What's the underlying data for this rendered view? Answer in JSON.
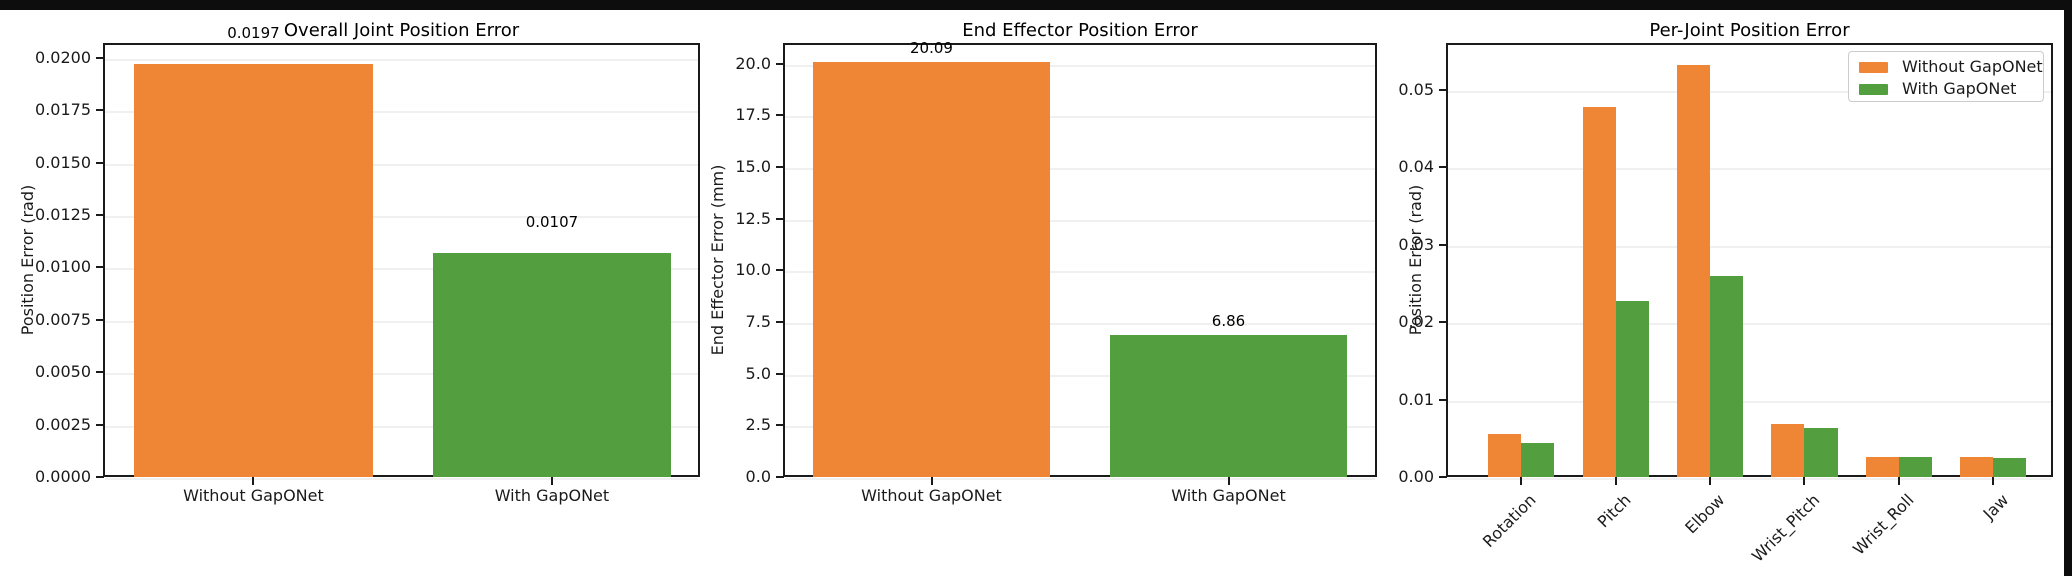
{
  "figure": {
    "background_color": "#ffffff",
    "frame_color": "#0d0d0d"
  },
  "colors": {
    "without_gaponet": "#ef8636",
    "with_gaponet": "#539e3e",
    "spine": "#1a1a1a"
  },
  "chart_data": [
    {
      "type": "bar",
      "title": "Overall Joint Position Error",
      "ylabel": "Position Error (rad)",
      "categories": [
        "Without GapONet",
        "With GapONet"
      ],
      "values": [
        0.0197,
        0.0107
      ],
      "bar_labels": [
        "0.0197",
        "0.0107"
      ],
      "bar_colors": [
        "#ef8636",
        "#539e3e"
      ],
      "ytick_labels": [
        "0.0000",
        "0.0025",
        "0.0050",
        "0.0075",
        "0.0100",
        "0.0125",
        "0.0150",
        "0.0175",
        "0.0200"
      ],
      "ytick_values": [
        0.0,
        0.0025,
        0.005,
        0.0075,
        0.01,
        0.0125,
        0.015,
        0.0175,
        0.02
      ],
      "ylim": [
        0,
        0.0207
      ],
      "grid": true,
      "legend": null
    },
    {
      "type": "bar",
      "title": "End Effector Position Error",
      "ylabel": "End Effector Error (mm)",
      "categories": [
        "Without GapONet",
        "With GapONet"
      ],
      "values": [
        20.09,
        6.86
      ],
      "bar_labels": [
        "20.09",
        "6.86"
      ],
      "bar_colors": [
        "#ef8636",
        "#539e3e"
      ],
      "ytick_labels": [
        "0.0",
        "2.5",
        "5.0",
        "7.5",
        "10.0",
        "12.5",
        "15.0",
        "17.5",
        "20.0"
      ],
      "ytick_values": [
        0,
        2.5,
        5,
        7.5,
        10,
        12.5,
        15,
        17.5,
        20
      ],
      "ylim": [
        0,
        21.0
      ],
      "grid": true,
      "legend": null
    },
    {
      "type": "grouped_bar",
      "title": "Per-Joint Position Error",
      "ylabel": "Position Error (rad)",
      "categories": [
        "Rotation",
        "Pitch",
        "Elbow",
        "Wrist_Pitch",
        "Wrist_Roll",
        "Jaw"
      ],
      "series": [
        {
          "name": "Without GapONet",
          "color": "#ef8636",
          "values": [
            0.0055,
            0.0477,
            0.0531,
            0.0068,
            0.0026,
            0.0026
          ]
        },
        {
          "name": "With GapONet",
          "color": "#539e3e",
          "values": [
            0.0044,
            0.0227,
            0.026,
            0.0063,
            0.0026,
            0.0025
          ]
        }
      ],
      "ytick_labels": [
        "0.00",
        "0.01",
        "0.02",
        "0.03",
        "0.04",
        "0.05"
      ],
      "ytick_values": [
        0.0,
        0.01,
        0.02,
        0.03,
        0.04,
        0.05
      ],
      "ylim": [
        0,
        0.056
      ],
      "grid": true,
      "legend": {
        "position": "upper right",
        "entries": [
          "Without GapONet",
          "With GapONet"
        ]
      }
    }
  ]
}
